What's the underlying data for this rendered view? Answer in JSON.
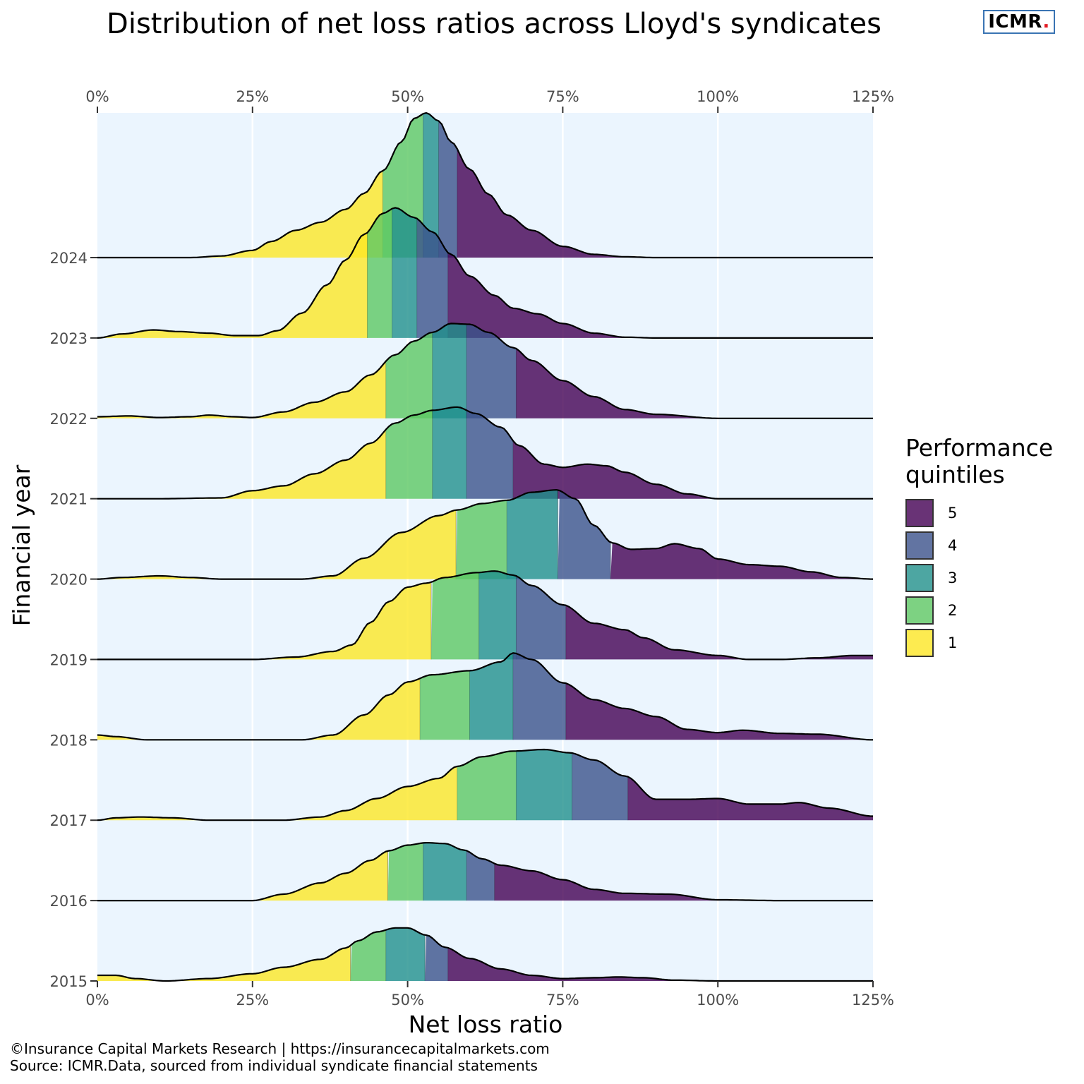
{
  "header": {
    "title": "Distribution of net loss ratios across Lloyd's syndicates",
    "brand_text": "ICMR",
    "brand_dot": ".",
    "brand_dot_color": "#e31b23"
  },
  "caption": {
    "line1": "©Insurance Capital Markets Research | https://insurancecapitalmarkets.com",
    "line2": "Source: ICMR.Data, sourced from individual syndicate financial statements"
  },
  "legend": {
    "title": "Performance quintiles",
    "items": [
      {
        "label": "5",
        "color": "#440154"
      },
      {
        "label": "4",
        "color": "#3b528b"
      },
      {
        "label": "3",
        "color": "#21908c"
      },
      {
        "label": "2",
        "color": "#5dc863"
      },
      {
        "label": "1",
        "color": "#fde725"
      }
    ]
  },
  "chart_data": {
    "type": "area",
    "subtype": "ridgeline density",
    "title": "Distribution of net loss ratios across Lloyd's syndicates",
    "xlabel": "Net loss ratio",
    "ylabel": "Financial year",
    "xlim": [
      0,
      125
    ],
    "x_ticks": [
      "0%",
      "25%",
      "50%",
      "75%",
      "100%",
      "125%"
    ],
    "x_tick_values": [
      0,
      25,
      50,
      75,
      100,
      125
    ],
    "categories": [
      "2015",
      "2016",
      "2017",
      "2018",
      "2019",
      "2020",
      "2021",
      "2022",
      "2023",
      "2024"
    ],
    "panel_background": "#ebf5fe",
    "grid": true,
    "legend_position": "right",
    "fill_opacity": 0.8,
    "series": [
      {
        "year": "2015",
        "quintile_breaks": [
          40.8,
          46.5,
          52.8,
          56.5
        ],
        "density": [
          [
            0,
            0.07
          ],
          [
            3,
            0.07
          ],
          [
            6,
            0.03
          ],
          [
            11,
            0.0
          ],
          [
            18,
            0.03
          ],
          [
            25,
            0.09
          ],
          [
            30,
            0.17
          ],
          [
            36,
            0.27
          ],
          [
            40,
            0.41
          ],
          [
            42,
            0.5
          ],
          [
            45,
            0.61
          ],
          [
            48,
            0.66
          ],
          [
            50,
            0.66
          ],
          [
            53,
            0.57
          ],
          [
            56,
            0.42
          ],
          [
            60,
            0.28
          ],
          [
            65,
            0.15
          ],
          [
            70,
            0.07
          ],
          [
            75,
            0.03
          ],
          [
            80,
            0.04
          ],
          [
            84,
            0.05
          ],
          [
            88,
            0.04
          ],
          [
            93,
            0.01
          ],
          [
            100,
            0.0
          ],
          [
            125,
            0.0
          ]
        ]
      },
      {
        "year": "2016",
        "quintile_breaks": [
          46.8,
          52.5,
          59.5,
          64.0
        ],
        "density": [
          [
            0,
            0.0
          ],
          [
            15,
            0.0
          ],
          [
            25,
            0.0
          ],
          [
            30,
            0.08
          ],
          [
            36,
            0.22
          ],
          [
            40,
            0.34
          ],
          [
            44,
            0.5
          ],
          [
            47,
            0.62
          ],
          [
            50,
            0.69
          ],
          [
            53,
            0.72
          ],
          [
            56,
            0.71
          ],
          [
            59,
            0.63
          ],
          [
            62,
            0.52
          ],
          [
            65,
            0.44
          ],
          [
            70,
            0.37
          ],
          [
            75,
            0.26
          ],
          [
            80,
            0.14
          ],
          [
            85,
            0.09
          ],
          [
            92,
            0.08
          ],
          [
            100,
            0.01
          ],
          [
            110,
            0.0
          ],
          [
            125,
            0.0
          ]
        ]
      },
      {
        "year": "2017",
        "quintile_breaks": [
          58.0,
          67.5,
          76.5,
          85.5
        ],
        "density": [
          [
            0,
            0.0
          ],
          [
            3,
            0.03
          ],
          [
            7,
            0.04
          ],
          [
            12,
            0.03
          ],
          [
            18,
            0.0
          ],
          [
            25,
            0.0
          ],
          [
            30,
            0.0
          ],
          [
            36,
            0.04
          ],
          [
            40,
            0.12
          ],
          [
            45,
            0.27
          ],
          [
            50,
            0.42
          ],
          [
            55,
            0.52
          ],
          [
            58,
            0.67
          ],
          [
            62,
            0.79
          ],
          [
            67,
            0.86
          ],
          [
            72,
            0.88
          ],
          [
            76,
            0.84
          ],
          [
            80,
            0.75
          ],
          [
            85,
            0.55
          ],
          [
            90,
            0.26
          ],
          [
            95,
            0.26
          ],
          [
            100,
            0.27
          ],
          [
            105,
            0.2
          ],
          [
            110,
            0.2
          ],
          [
            113,
            0.22
          ],
          [
            118,
            0.15
          ],
          [
            125,
            0.05
          ]
        ]
      },
      {
        "year": "2018",
        "quintile_breaks": [
          52.0,
          60.0,
          67.0,
          75.5
        ],
        "density": [
          [
            0,
            0.06
          ],
          [
            3,
            0.04
          ],
          [
            8,
            0.0
          ],
          [
            25,
            0.0
          ],
          [
            33,
            0.0
          ],
          [
            38,
            0.06
          ],
          [
            43,
            0.31
          ],
          [
            47,
            0.56
          ],
          [
            50,
            0.72
          ],
          [
            54,
            0.81
          ],
          [
            60,
            0.86
          ],
          [
            65,
            0.97
          ],
          [
            67,
            1.08
          ],
          [
            70,
            1.0
          ],
          [
            75,
            0.71
          ],
          [
            80,
            0.5
          ],
          [
            85,
            0.39
          ],
          [
            90,
            0.29
          ],
          [
            95,
            0.13
          ],
          [
            100,
            0.09
          ],
          [
            104,
            0.12
          ],
          [
            110,
            0.08
          ],
          [
            116,
            0.07
          ],
          [
            125,
            0.0
          ]
        ]
      },
      {
        "year": "2019",
        "quintile_breaks": [
          53.8,
          61.5,
          67.5,
          75.5
        ],
        "density": [
          [
            0,
            0.0
          ],
          [
            25,
            0.0
          ],
          [
            32,
            0.03
          ],
          [
            38,
            0.1
          ],
          [
            41,
            0.18
          ],
          [
            44,
            0.46
          ],
          [
            47,
            0.72
          ],
          [
            50,
            0.9
          ],
          [
            53,
            0.95
          ],
          [
            56,
            1.02
          ],
          [
            61,
            1.08
          ],
          [
            64,
            1.1
          ],
          [
            67,
            1.05
          ],
          [
            70,
            0.92
          ],
          [
            75,
            0.68
          ],
          [
            80,
            0.45
          ],
          [
            85,
            0.37
          ],
          [
            88,
            0.27
          ],
          [
            93,
            0.12
          ],
          [
            100,
            0.05
          ],
          [
            105,
            0.0
          ],
          [
            110,
            0.0
          ],
          [
            116,
            0.02
          ],
          [
            122,
            0.05
          ],
          [
            125,
            0.05
          ]
        ]
      },
      {
        "year": "2020",
        "quintile_breaks": [
          57.8,
          66.0,
          74.2,
          82.7
        ],
        "density": [
          [
            0,
            0.0
          ],
          [
            4,
            0.02
          ],
          [
            10,
            0.04
          ],
          [
            15,
            0.02
          ],
          [
            20,
            0.0
          ],
          [
            33,
            0.0
          ],
          [
            38,
            0.04
          ],
          [
            43,
            0.26
          ],
          [
            49,
            0.58
          ],
          [
            55,
            0.79
          ],
          [
            58,
            0.86
          ],
          [
            62,
            0.94
          ],
          [
            66,
            0.98
          ],
          [
            70,
            1.08
          ],
          [
            74,
            1.11
          ],
          [
            77,
            1.0
          ],
          [
            80,
            0.67
          ],
          [
            83,
            0.45
          ],
          [
            86,
            0.37
          ],
          [
            90,
            0.38
          ],
          [
            93,
            0.44
          ],
          [
            97,
            0.38
          ],
          [
            100,
            0.25
          ],
          [
            105,
            0.18
          ],
          [
            110,
            0.16
          ],
          [
            115,
            0.09
          ],
          [
            120,
            0.02
          ],
          [
            125,
            0.0
          ]
        ]
      },
      {
        "year": "2021",
        "quintile_breaks": [
          46.5,
          54.0,
          59.5,
          67.0
        ],
        "density": [
          [
            0,
            0.0
          ],
          [
            10,
            0.0
          ],
          [
            20,
            0.01
          ],
          [
            25,
            0.1
          ],
          [
            30,
            0.16
          ],
          [
            35,
            0.31
          ],
          [
            40,
            0.48
          ],
          [
            44,
            0.69
          ],
          [
            48,
            0.94
          ],
          [
            51,
            1.04
          ],
          [
            54,
            1.1
          ],
          [
            58,
            1.14
          ],
          [
            61,
            1.06
          ],
          [
            65,
            0.89
          ],
          [
            68,
            0.66
          ],
          [
            72,
            0.43
          ],
          [
            75,
            0.39
          ],
          [
            79,
            0.43
          ],
          [
            82,
            0.41
          ],
          [
            85,
            0.33
          ],
          [
            90,
            0.18
          ],
          [
            95,
            0.06
          ],
          [
            100,
            0.0
          ],
          [
            110,
            0.0
          ],
          [
            125,
            0.0
          ]
        ]
      },
      {
        "year": "2022",
        "quintile_breaks": [
          46.5,
          54.0,
          59.5,
          67.5
        ],
        "density": [
          [
            0,
            0.02
          ],
          [
            5,
            0.03
          ],
          [
            10,
            0.01
          ],
          [
            15,
            0.02
          ],
          [
            18,
            0.04
          ],
          [
            22,
            0.02
          ],
          [
            25,
            0.01
          ],
          [
            30,
            0.08
          ],
          [
            35,
            0.2
          ],
          [
            40,
            0.33
          ],
          [
            44,
            0.54
          ],
          [
            48,
            0.79
          ],
          [
            51,
            0.96
          ],
          [
            54,
            1.07
          ],
          [
            57,
            1.18
          ],
          [
            60,
            1.17
          ],
          [
            63,
            1.07
          ],
          [
            67,
            0.88
          ],
          [
            70,
            0.72
          ],
          [
            75,
            0.47
          ],
          [
            80,
            0.27
          ],
          [
            85,
            0.11
          ],
          [
            90,
            0.05
          ],
          [
            100,
            0.0
          ],
          [
            110,
            0.0
          ],
          [
            125,
            0.0
          ]
        ]
      },
      {
        "year": "2023",
        "quintile_breaks": [
          43.5,
          47.5,
          51.5,
          56.5
        ],
        "density": [
          [
            0,
            0.0
          ],
          [
            4,
            0.05
          ],
          [
            9,
            0.1
          ],
          [
            13,
            0.08
          ],
          [
            18,
            0.06
          ],
          [
            22,
            0.03
          ],
          [
            26,
            0.03
          ],
          [
            29,
            0.09
          ],
          [
            33,
            0.31
          ],
          [
            37,
            0.66
          ],
          [
            40,
            0.97
          ],
          [
            43,
            1.29
          ],
          [
            46,
            1.55
          ],
          [
            48,
            1.62
          ],
          [
            51,
            1.5
          ],
          [
            54,
            1.32
          ],
          [
            57,
            1.04
          ],
          [
            60,
            0.77
          ],
          [
            64,
            0.53
          ],
          [
            67,
            0.37
          ],
          [
            71,
            0.3
          ],
          [
            75,
            0.18
          ],
          [
            80,
            0.06
          ],
          [
            85,
            0.01
          ],
          [
            90,
            0.0
          ],
          [
            125,
            0.0
          ]
        ]
      },
      {
        "year": "2024",
        "quintile_breaks": [
          46.0,
          52.5,
          55.0,
          58.0
        ],
        "density": [
          [
            0,
            0.0
          ],
          [
            10,
            0.0
          ],
          [
            15,
            0.0
          ],
          [
            20,
            0.02
          ],
          [
            25,
            0.09
          ],
          [
            28,
            0.2
          ],
          [
            32,
            0.34
          ],
          [
            36,
            0.44
          ],
          [
            40,
            0.6
          ],
          [
            43,
            0.8
          ],
          [
            46,
            1.08
          ],
          [
            49,
            1.44
          ],
          [
            51,
            1.73
          ],
          [
            53,
            1.8
          ],
          [
            55,
            1.7
          ],
          [
            57,
            1.44
          ],
          [
            60,
            1.1
          ],
          [
            63,
            0.79
          ],
          [
            66,
            0.53
          ],
          [
            70,
            0.34
          ],
          [
            75,
            0.14
          ],
          [
            80,
            0.04
          ],
          [
            85,
            0.01
          ],
          [
            90,
            0.0
          ],
          [
            125,
            0.0
          ]
        ]
      }
    ]
  }
}
